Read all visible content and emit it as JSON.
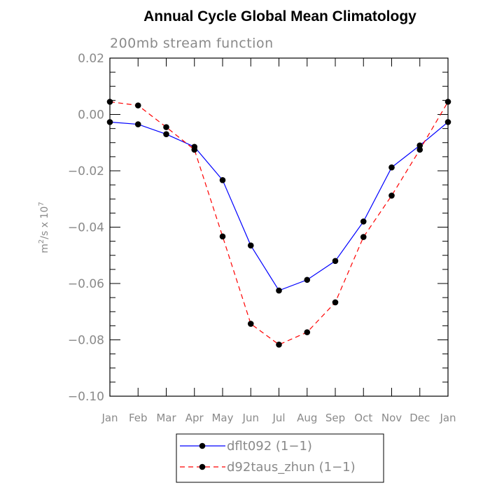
{
  "chart_data": {
    "type": "line",
    "title": "Annual Cycle Global Mean Climatology",
    "subtitle": "200mb stream function",
    "ylabel_base": "m",
    "ylabel_sup1": "2",
    "ylabel_mid": "/s x 10",
    "ylabel_sup2": "7",
    "ylim": [
      -0.1,
      0.02
    ],
    "yticks": [
      "0.02",
      "0.00",
      "−0.02",
      "−0.04",
      "−0.06",
      "−0.08",
      "−0.10"
    ],
    "ytick_values": [
      0.02,
      0.0,
      -0.02,
      -0.04,
      -0.06,
      -0.08,
      -0.1
    ],
    "categories": [
      "Jan",
      "Feb",
      "Mar",
      "Apr",
      "May",
      "Jun",
      "Jul",
      "Aug",
      "Sep",
      "Oct",
      "Nov",
      "Dec",
      "Jan"
    ],
    "series": [
      {
        "name": "dflt092 (1−1)",
        "color": "#0000ff",
        "dash": "solid",
        "values": [
          -0.0027,
          -0.0035,
          -0.007,
          -0.0115,
          -0.0233,
          -0.0465,
          -0.0625,
          -0.0587,
          -0.052,
          -0.038,
          -0.0188,
          -0.011,
          -0.0027
        ]
      },
      {
        "name": "d92taus_zhun (1−1)",
        "color": "#ff0000",
        "dash": "dashed",
        "values": [
          0.0045,
          0.0032,
          -0.0045,
          -0.0125,
          -0.0433,
          -0.0743,
          -0.0817,
          -0.0773,
          -0.0667,
          -0.0435,
          -0.0288,
          -0.0125,
          0.0045
        ]
      }
    ],
    "legend_placement": "bottom-center",
    "grid": false
  }
}
